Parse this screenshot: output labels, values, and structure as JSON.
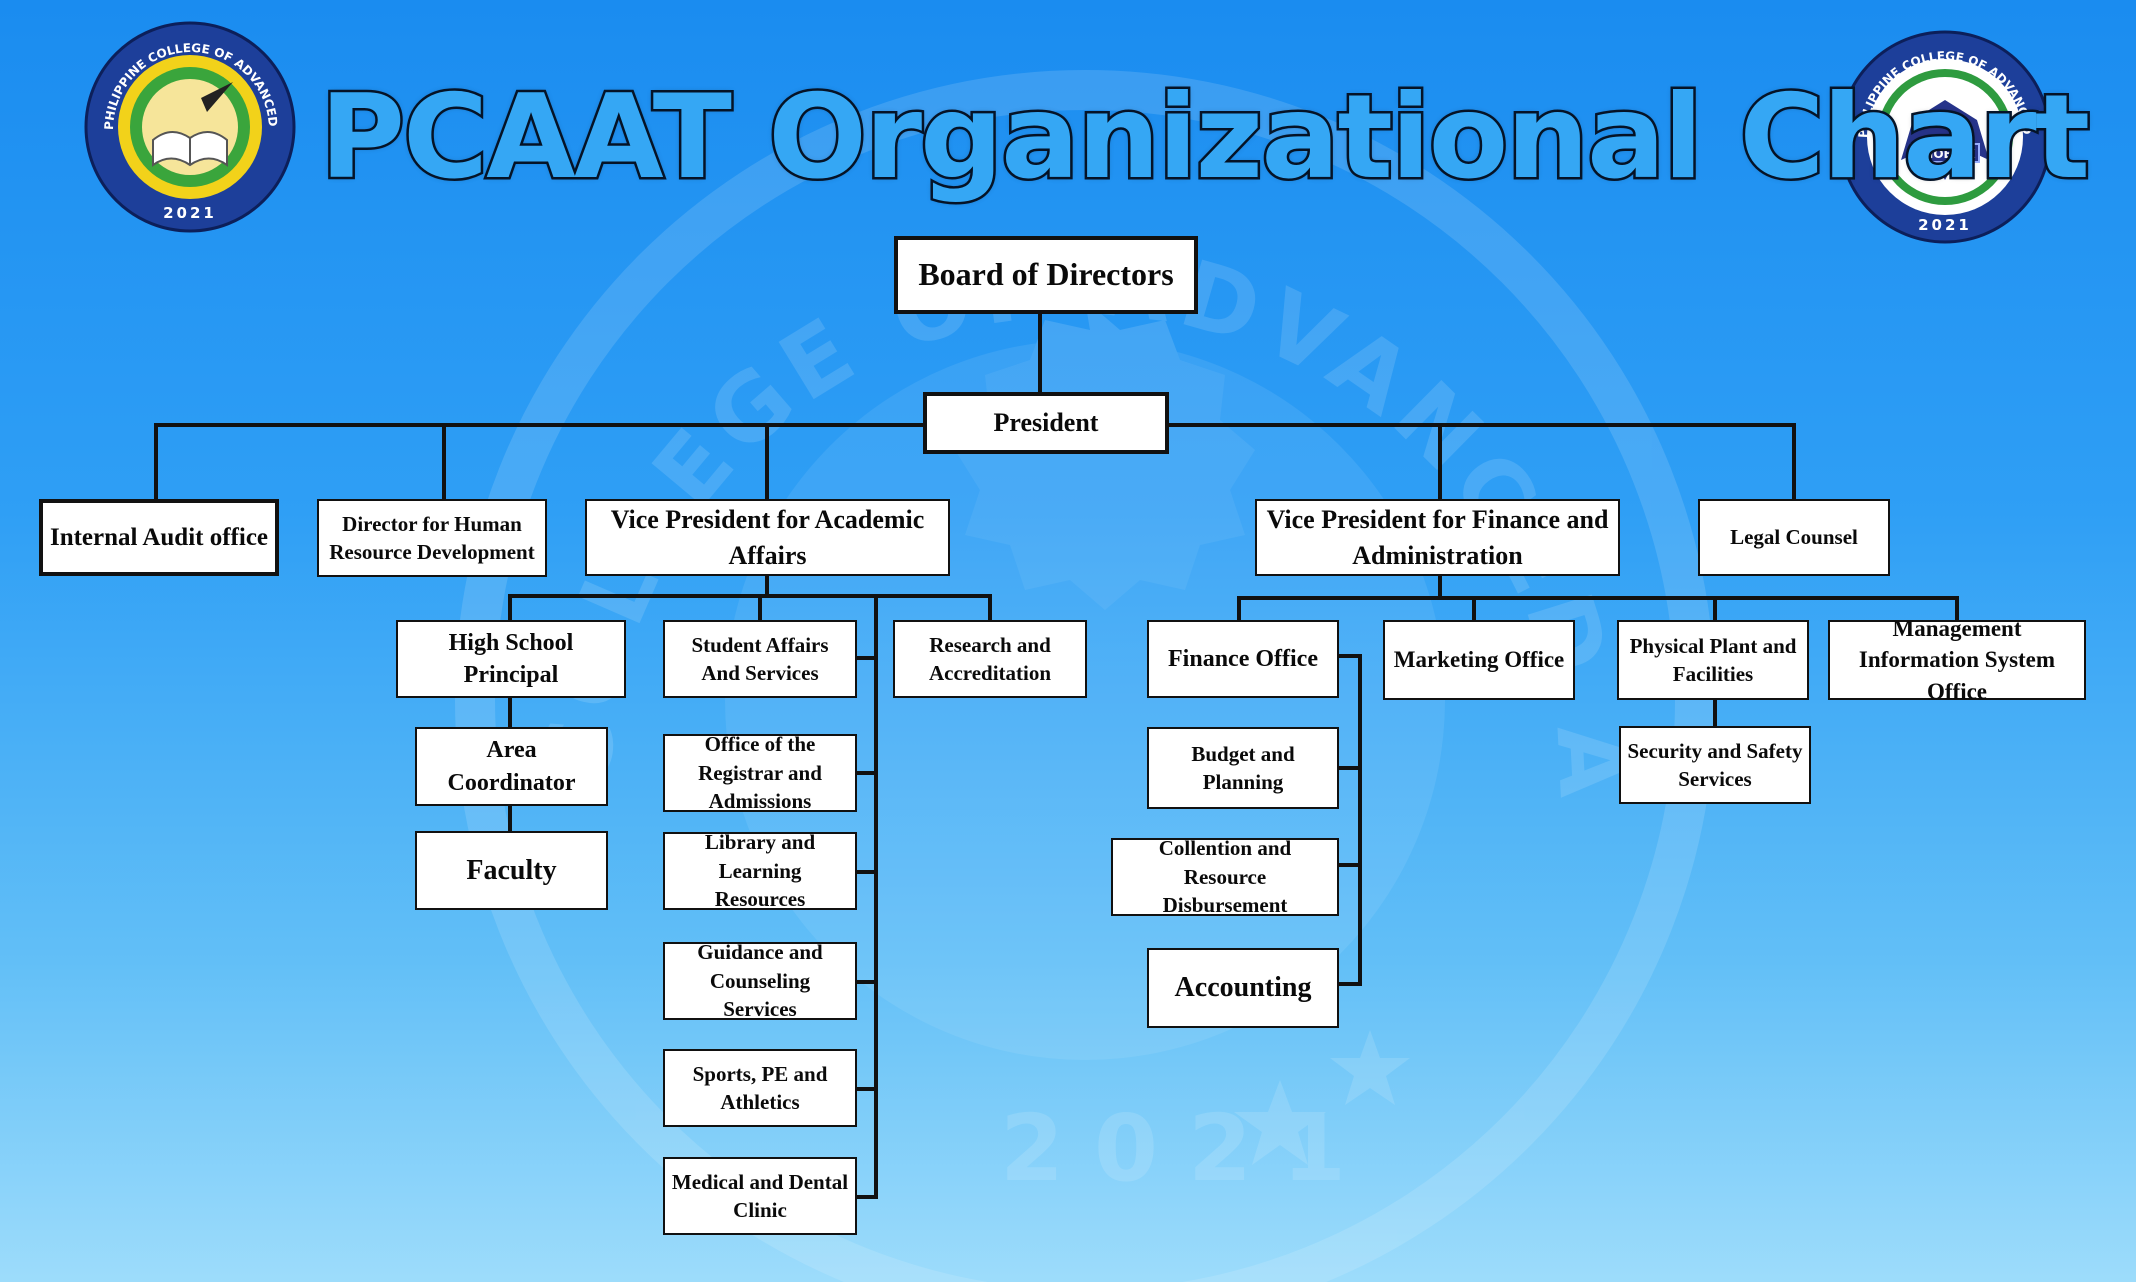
{
  "title": "PCAAT Organizational Chart",
  "logos": {
    "left": {
      "ring_text": "PHILIPPINE COLLEGE OF ADVANCED ARTS AND TECHNOLOGY",
      "year": "2021"
    },
    "right": {
      "ring_text": "PHILIPPINE COLLEGE OF ADVANCED ARTS AND TECHNOLOGY",
      "year": "2021",
      "mascot": "PHOENIX"
    }
  },
  "watermark": {
    "arc_text": "COLLEGE OF ADVANCED ARTS AND TECHNOLOGY",
    "year": "2021"
  },
  "colors": {
    "accent": "#35a7f4",
    "outline": "#06162c",
    "line": "#111111",
    "box": "#ffffff"
  },
  "nodes": {
    "board": "Board of Directors",
    "president": "President",
    "internal_audit": "Internal Audit office",
    "hr_director": "Director for Human Resource Development",
    "vp_academic": "Vice President for Academic Affairs",
    "vp_finance": "Vice President for Finance and Administration",
    "legal": "Legal Counsel",
    "hs_principal": "High School Principal",
    "area_coordinator": "Area Coordinator",
    "faculty": "Faculty",
    "student_affairs": "Student Affairs And Services",
    "research": "Research and Accreditation",
    "registrar": "Office of the Registrar and Admissions",
    "library": "Library and Learning Resources",
    "guidance": "Guidance and Counseling Services",
    "sports": "Sports, PE and Athletics",
    "medical": "Medical and Dental Clinic",
    "finance_office": "Finance Office",
    "budget": "Budget and Planning",
    "collection": "Collention and Resource Disbursement",
    "accounting": "Accounting",
    "marketing": "Marketing Office",
    "physical_plant": "Physical Plant and Facilities",
    "security": "Security and Safety Services",
    "mis": "Management Information System Office"
  }
}
